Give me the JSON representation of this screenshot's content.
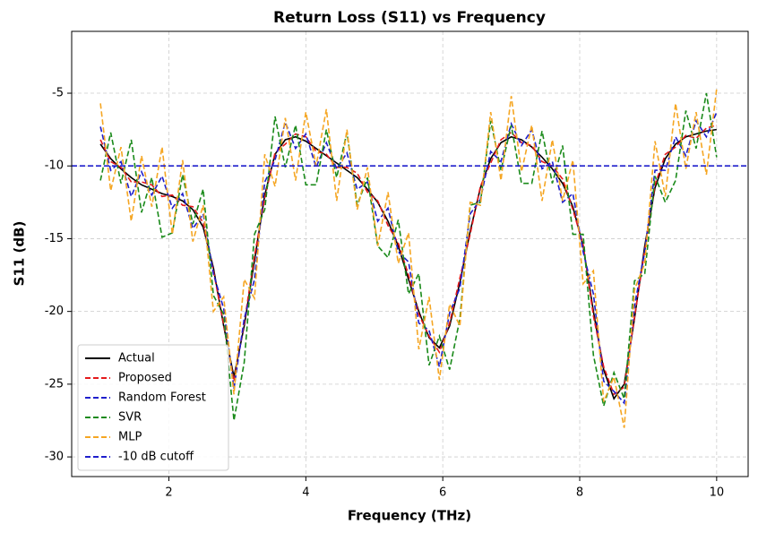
{
  "chart_data": {
    "type": "line",
    "title": "Return Loss (S11) vs Frequency",
    "x_label": "Frequency (THz)",
    "y_label": "S11 (dB)",
    "x": [
      1,
      1.15,
      1.3,
      1.45,
      1.6,
      1.75,
      1.9,
      2.05,
      2.2,
      2.35,
      2.5,
      2.65,
      2.8,
      2.95,
      3.1,
      3.25,
      3.4,
      3.55,
      3.7,
      3.85,
      4,
      4.15,
      4.3,
      4.45,
      4.6,
      4.75,
      4.9,
      5.05,
      5.2,
      5.35,
      5.5,
      5.65,
      5.8,
      5.95,
      6.1,
      6.25,
      6.4,
      6.55,
      6.7,
      6.85,
      7,
      7.15,
      7.3,
      7.45,
      7.6,
      7.75,
      7.9,
      8.05,
      8.2,
      8.35,
      8.5,
      8.65,
      8.8,
      8.95,
      9.1,
      9.25,
      9.4,
      9.55,
      9.7,
      9.85,
      10
    ],
    "series": [
      {
        "name": "Actual",
        "color": "#000000",
        "style": "solid",
        "values": [
          -8.5,
          -9.5,
          -10.2,
          -10.8,
          -11.3,
          -11.6,
          -11.9,
          -12.1,
          -12.4,
          -13.0,
          -14.2,
          -17.0,
          -21.0,
          -24.5,
          -21.0,
          -16.5,
          -12.0,
          -9.2,
          -8.2,
          -8.0,
          -8.3,
          -8.8,
          -9.3,
          -9.8,
          -10.3,
          -10.8,
          -11.6,
          -12.5,
          -13.8,
          -15.5,
          -17.8,
          -20.0,
          -21.8,
          -22.5,
          -21.0,
          -18.0,
          -14.5,
          -11.5,
          -9.5,
          -8.4,
          -8.0,
          -8.2,
          -8.7,
          -9.4,
          -10.2,
          -11.2,
          -12.8,
          -15.5,
          -20.0,
          -24.0,
          -26.0,
          -25.0,
          -20.5,
          -15.5,
          -11.5,
          -9.5,
          -8.5,
          -8.0,
          -7.8,
          -7.6,
          -7.5
        ]
      },
      {
        "name": "Proposed",
        "color": "#e41a1c",
        "style": "dashed",
        "values": [
          -8.2,
          -9.7,
          -10.1,
          -11.1,
          -11.1,
          -11.3,
          -12.1,
          -12.0,
          -12.7,
          -12.8,
          -13.9,
          -17.2,
          -20.9,
          -24.8,
          -20.8,
          -16.2,
          -12.2,
          -9.1,
          -8.5,
          -7.8,
          -8.0,
          -9.0,
          -9.2,
          -10.1,
          -10.1,
          -10.5,
          -11.8,
          -12.4,
          -14.1,
          -15.3,
          -17.5,
          -20.2,
          -21.7,
          -22.8,
          -20.8,
          -17.7,
          -14.7,
          -11.4,
          -9.8,
          -8.2,
          -7.7,
          -8.4,
          -8.6,
          -9.7,
          -10.0,
          -10.9,
          -13.0,
          -15.4,
          -20.3,
          -23.8,
          -25.7,
          -25.2,
          -20.4,
          -15.8,
          -11.3,
          -9.2,
          -8.7,
          -7.9,
          -8.1,
          -7.4,
          -7.2
        ]
      },
      {
        "name": "Random Forest",
        "color": "#1f1fcc",
        "style": "dashed",
        "values": [
          -7.3,
          -10.3,
          -9.7,
          -12.1,
          -10.4,
          -12.0,
          -10.7,
          -12.9,
          -11.9,
          -14.3,
          -13.3,
          -17.4,
          -19.8,
          -25.3,
          -20.5,
          -17.8,
          -11.1,
          -9.6,
          -7.0,
          -8.8,
          -7.8,
          -10.1,
          -8.4,
          -10.2,
          -9.1,
          -11.6,
          -11.1,
          -13.8,
          -12.9,
          -15.9,
          -16.6,
          -20.8,
          -21.3,
          -23.8,
          -20.1,
          -18.4,
          -13.3,
          -12.3,
          -9.0,
          -9.7,
          -7.1,
          -8.6,
          -7.5,
          -10.2,
          -9.7,
          -12.5,
          -11.9,
          -15.9,
          -18.8,
          -24.8,
          -25.5,
          -26.3,
          -19.6,
          -15.9,
          -10.3,
          -10.3,
          -8.0,
          -9.3,
          -6.9,
          -8.0,
          -6.3
        ]
      },
      {
        "name": "SVR",
        "color": "#1a8a1a",
        "style": "dashed",
        "values": [
          -11.0,
          -7.7,
          -11.2,
          -8.2,
          -13.2,
          -10.8,
          -14.9,
          -14.6,
          -10.6,
          -14.0,
          -11.6,
          -18.9,
          -20.2,
          -27.5,
          -23.5,
          -14.7,
          -13.0,
          -6.6,
          -10.1,
          -7.2,
          -11.3,
          -11.3,
          -7.5,
          -10.8,
          -7.7,
          -12.7,
          -10.8,
          -15.5,
          -16.3,
          -13.7,
          -18.8,
          -17.4,
          -23.7,
          -21.7,
          -24.0,
          -20.5,
          -12.7,
          -12.5,
          -6.9,
          -10.3,
          -7.2,
          -11.2,
          -11.2,
          -7.6,
          -11.2,
          -8.6,
          -14.7,
          -14.7,
          -23.0,
          -26.5,
          -24.2,
          -26.0,
          -17.9,
          -17.4,
          -10.7,
          -12.5,
          -11.0,
          -6.2,
          -8.8,
          -5.0,
          -9.4
        ]
      },
      {
        "name": "MLP",
        "color": "#f5a623",
        "style": "dashed",
        "values": [
          -5.7,
          -11.7,
          -8.7,
          -13.8,
          -9.3,
          -12.8,
          -8.7,
          -14.7,
          -9.6,
          -15.2,
          -12.7,
          -20.0,
          -19.0,
          -25.7,
          -17.8,
          -19.1,
          -9.2,
          -11.4,
          -6.7,
          -11.0,
          -6.3,
          -10.0,
          -6.1,
          -12.4,
          -7.5,
          -13.0,
          -10.1,
          -15.5,
          -11.8,
          -16.7,
          -14.6,
          -22.6,
          -19.0,
          -24.7,
          -19.5,
          -21.0,
          -12.5,
          -12.7,
          -6.3,
          -11.0,
          -5.2,
          -10.4,
          -7.2,
          -12.4,
          -8.2,
          -12.4,
          -9.6,
          -18.1,
          -17.2,
          -26.2,
          -24.5,
          -28.0,
          -18.5,
          -16.7,
          -8.3,
          -12.1,
          -5.7,
          -10.2,
          -6.3,
          -10.6,
          -4.7
        ]
      }
    ],
    "hlines": [
      {
        "name": "-10 dB cutoff",
        "color": "#1f1fcc",
        "style": "dashed",
        "value": -10
      }
    ],
    "xlim": [
      0.58,
      10.46
    ],
    "ylim": [
      -31.35,
      -0.75
    ],
    "xticks": [
      2,
      4,
      6,
      8,
      10
    ],
    "yticks": [
      -30,
      -25,
      -20,
      -15,
      -10,
      -5
    ],
    "grid": true,
    "legend": "lower left"
  }
}
